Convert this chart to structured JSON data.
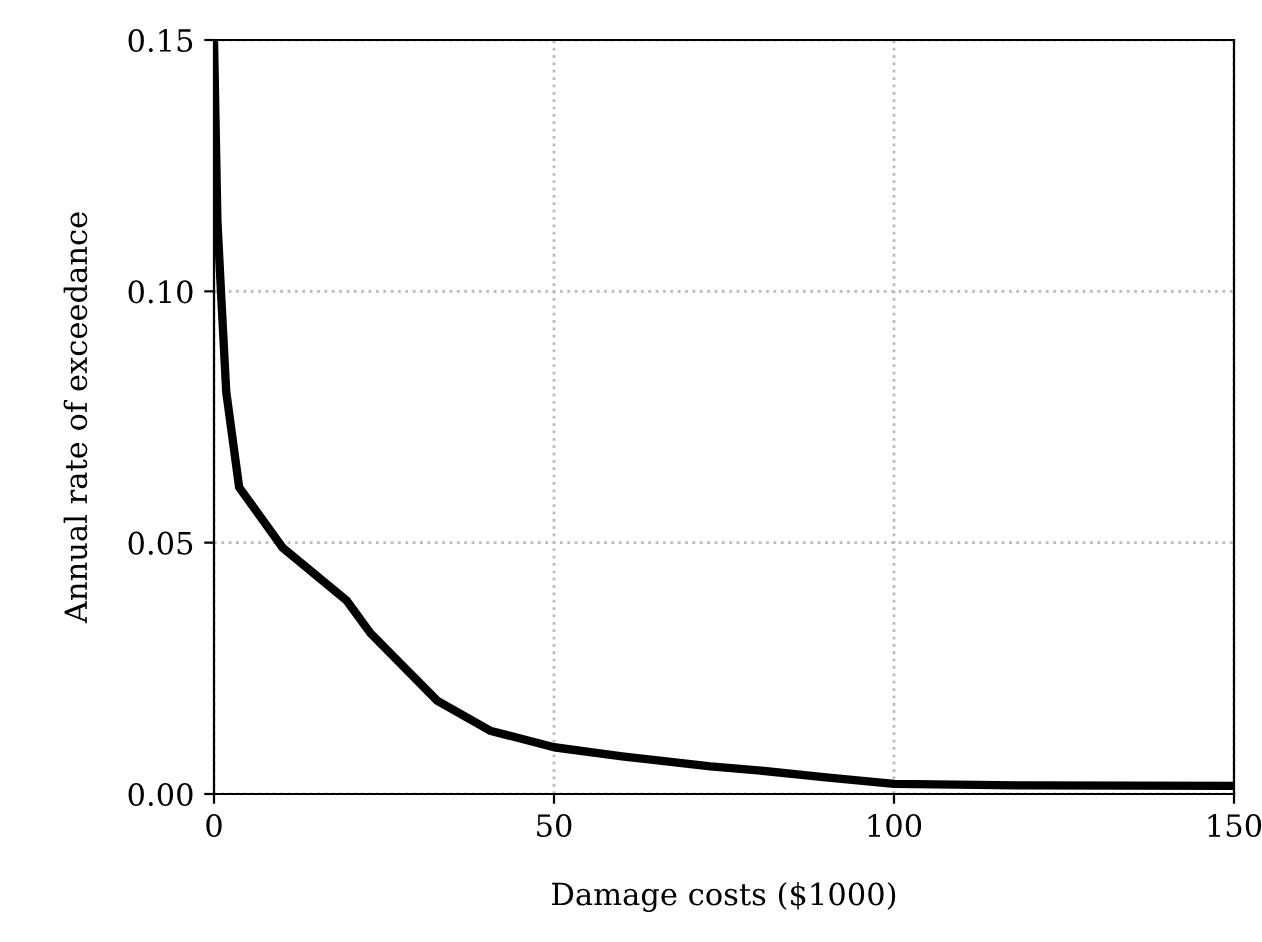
{
  "chart_data": {
    "type": "line",
    "xlabel": "Damage costs ($1000)",
    "ylabel": "Annual rate of exceedance",
    "series": [
      {
        "color": "#000000",
        "x": [
          0,
          0.5,
          1.1,
          1.8,
          3.7,
          10.1,
          19.5,
          23,
          32.8,
          40.6,
          50,
          60,
          73,
          80,
          90,
          100,
          120,
          150
        ],
        "values": [
          0.15,
          0.114,
          0.098,
          0.08,
          0.061,
          0.049,
          0.0385,
          0.032,
          0.0186,
          0.0126,
          0.0093,
          0.0075,
          0.0055,
          0.0047,
          0.0033,
          0.002,
          0.0017,
          0.0016
        ]
      }
    ],
    "xlim": [
      0,
      150
    ],
    "ylim": [
      0,
      0.15
    ],
    "xticks": [
      0,
      50,
      100,
      150
    ],
    "yticks": [
      {
        "value": 0,
        "label": "0.00"
      },
      {
        "value": 0.05,
        "label": "0.05"
      },
      {
        "value": 0.1,
        "label": "0.10"
      },
      {
        "value": 0.15,
        "label": "0.15"
      }
    ],
    "grid": true,
    "line_style": "solid"
  }
}
